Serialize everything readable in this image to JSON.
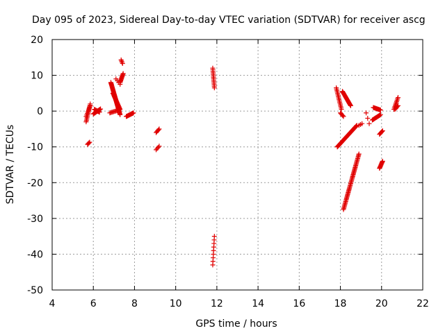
{
  "chart_data": {
    "type": "scatter",
    "title": "Day 095 of 2023, Sidereal Day-to-day VTEC variation (SDTVAR) for receiver ascg",
    "xlabel": "GPS time / hours",
    "ylabel": "SDTVAR / TECUs",
    "xlim": [
      4,
      22
    ],
    "ylim": [
      -50,
      20
    ],
    "xticks": [
      4,
      6,
      8,
      10,
      12,
      14,
      16,
      18,
      20,
      22
    ],
    "yticks": [
      -50,
      -40,
      -30,
      -20,
      -10,
      0,
      10,
      20
    ],
    "grid": true,
    "marker": "+",
    "marker_color": "#e00000",
    "series": [
      {
        "name": "SDTVAR",
        "segments": [
          {
            "x0": 5.65,
            "x1": 5.85,
            "y0": -3.0,
            "y1": 2.0,
            "n": 14
          },
          {
            "x0": 5.65,
            "x1": 5.85,
            "y0": -1.5,
            "y1": 1.5,
            "n": 8
          },
          {
            "x0": 5.72,
            "x1": 5.82,
            "y0": -9.3,
            "y1": -8.7,
            "n": 4
          },
          {
            "x0": 6.0,
            "x1": 6.35,
            "y0": -0.8,
            "y1": 0.6,
            "n": 14
          },
          {
            "x0": 6.05,
            "x1": 6.3,
            "y0": 0.5,
            "y1": -0.3,
            "n": 8
          },
          {
            "x0": 6.8,
            "x1": 7.25,
            "y0": -0.5,
            "y1": 0.3,
            "n": 10
          },
          {
            "x0": 6.85,
            "x1": 7.3,
            "y0": 8.0,
            "y1": -1.0,
            "n": 48
          },
          {
            "x0": 6.95,
            "x1": 7.3,
            "y0": 5.0,
            "y1": 0.5,
            "n": 20
          },
          {
            "x0": 7.1,
            "x1": 7.3,
            "y0": 9.0,
            "y1": 7.5,
            "n": 4
          },
          {
            "x0": 7.35,
            "x1": 7.42,
            "y0": 14.3,
            "y1": 13.3,
            "n": 4
          },
          {
            "x0": 7.3,
            "x1": 7.45,
            "y0": 8.0,
            "y1": 10.5,
            "n": 12
          },
          {
            "x0": 7.6,
            "x1": 7.95,
            "y0": -1.5,
            "y1": -0.5,
            "n": 14
          },
          {
            "x0": 9.05,
            "x1": 9.2,
            "y0": -6.0,
            "y1": -5.0,
            "n": 5
          },
          {
            "x0": 9.05,
            "x1": 9.2,
            "y0": -10.8,
            "y1": -9.8,
            "n": 4
          },
          {
            "x0": 11.8,
            "x1": 11.88,
            "y0": 12.0,
            "y1": 6.5,
            "n": 14
          },
          {
            "x0": 11.8,
            "x1": 11.88,
            "y0": -43.0,
            "y1": -35.0,
            "n": 9
          },
          {
            "x0": 17.8,
            "x1": 18.05,
            "y0": 6.5,
            "y1": 0.5,
            "n": 16
          },
          {
            "x0": 18.0,
            "x1": 18.15,
            "y0": -0.5,
            "y1": -1.5,
            "n": 5
          },
          {
            "x0": 18.1,
            "x1": 18.5,
            "y0": 5.5,
            "y1": 1.5,
            "n": 22
          },
          {
            "x0": 17.85,
            "x1": 18.8,
            "y0": -10.0,
            "y1": -4.0,
            "n": 45
          },
          {
            "x0": 18.15,
            "x1": 18.9,
            "y0": -27.5,
            "y1": -12.0,
            "n": 50
          },
          {
            "x0": 18.9,
            "x1": 19.05,
            "y0": -4.0,
            "y1": -3.5,
            "n": 3
          },
          {
            "x0": 19.25,
            "x1": 19.4,
            "y0": -0.5,
            "y1": -3.5,
            "n": 3
          },
          {
            "x0": 19.55,
            "x1": 19.95,
            "y0": -2.5,
            "y1": -1.0,
            "n": 14
          },
          {
            "x0": 19.6,
            "x1": 19.95,
            "y0": 1.0,
            "y1": 0.3,
            "n": 12
          },
          {
            "x0": 19.9,
            "x1": 20.05,
            "y0": -16.0,
            "y1": -14.0,
            "n": 10
          },
          {
            "x0": 19.9,
            "x1": 20.05,
            "y0": -6.5,
            "y1": -5.5,
            "n": 6
          },
          {
            "x0": 20.6,
            "x1": 20.8,
            "y0": 0.5,
            "y1": 3.8,
            "n": 10
          },
          {
            "x0": 20.65,
            "x1": 20.8,
            "y0": 0.5,
            "y1": 1.5,
            "n": 5
          }
        ]
      }
    ]
  }
}
